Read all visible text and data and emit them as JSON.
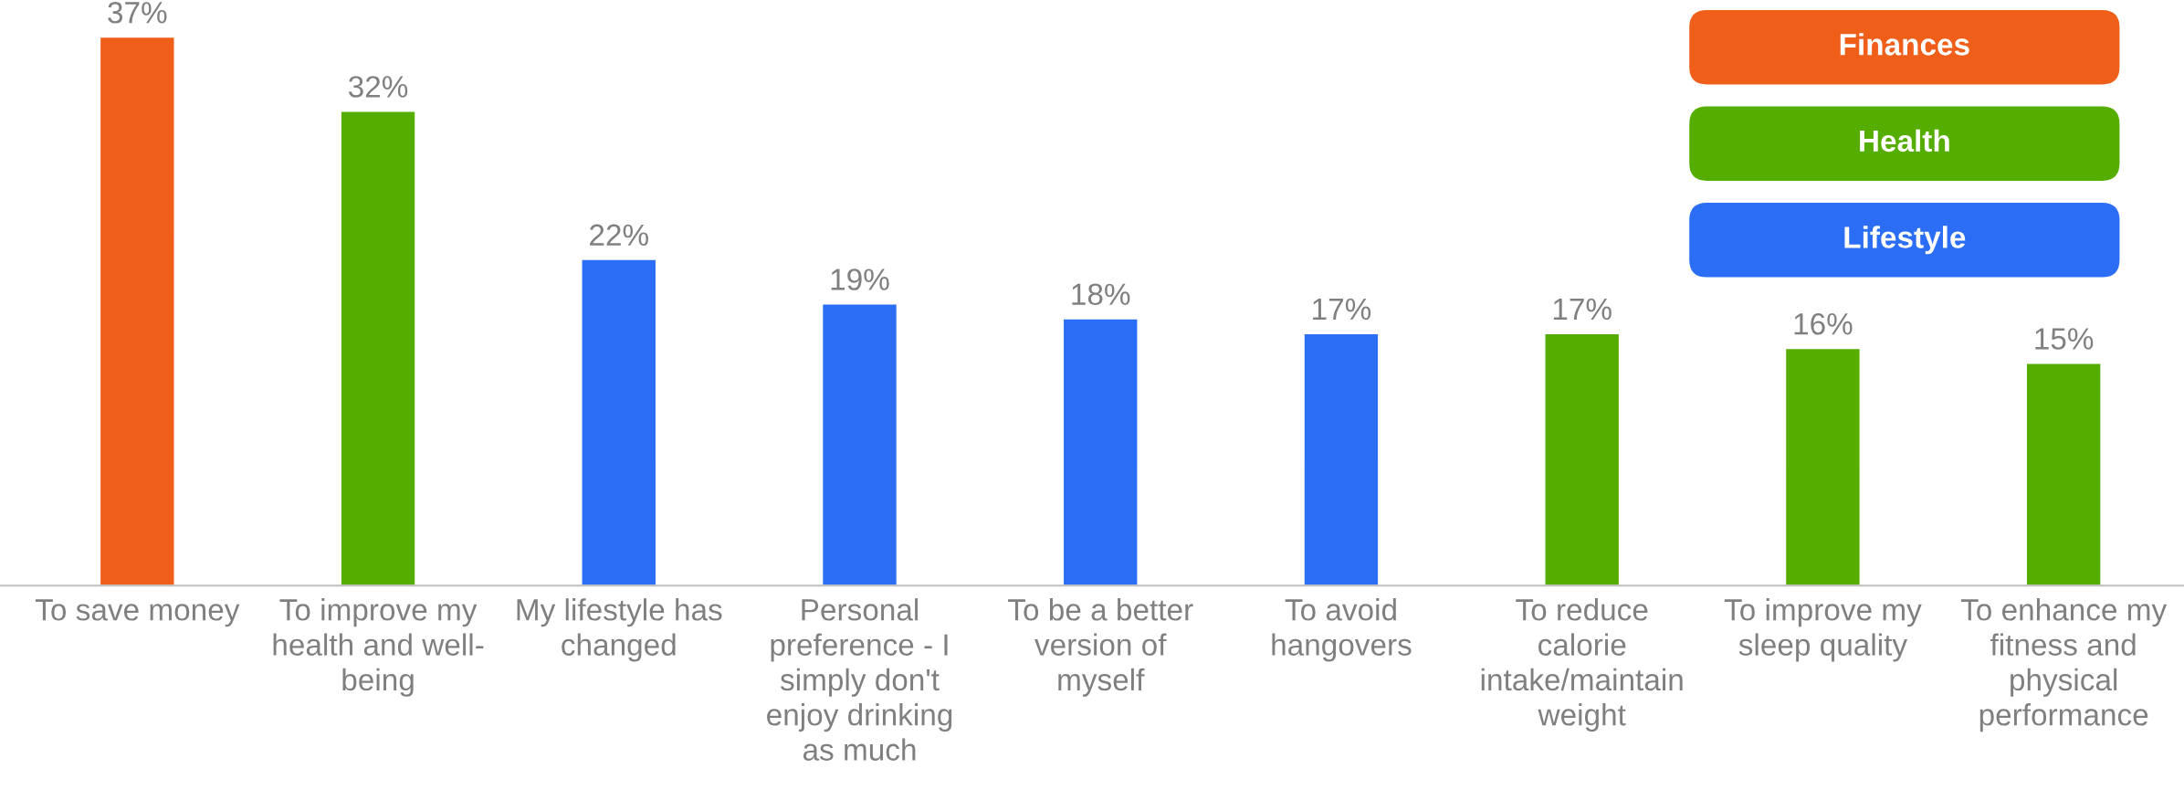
{
  "chart_data": {
    "type": "bar",
    "categories": [
      "To save money",
      "To improve my\nhealth and well-\nbeing",
      "My lifestyle has\nchanged",
      "Personal\npreference - I\nsimply don't\nenjoy drinking\nas much",
      "To be a better\nversion of\nmyself",
      "To avoid\nhangovers",
      "To reduce\ncalorie\nintake/maintain\nweight",
      "To improve my\nsleep quality",
      "To enhance my\nfitness and\nphysical\nperformance"
    ],
    "series": [
      {
        "name": "Finances",
        "color": "#f05f1a",
        "values": [
          37,
          null,
          null,
          null,
          null,
          null,
          null,
          null,
          null
        ],
        "value_labels": [
          "37%",
          null,
          null,
          null,
          null,
          null,
          null,
          null,
          null
        ]
      },
      {
        "name": "Health",
        "color": "#55ad00",
        "values": [
          null,
          32,
          null,
          null,
          null,
          null,
          17,
          16,
          15
        ],
        "value_labels": [
          null,
          "32%",
          null,
          null,
          null,
          null,
          "17%",
          "16%",
          "15%"
        ]
      },
      {
        "name": "Lifestyle",
        "color": "#2b6ef5",
        "values": [
          null,
          null,
          22,
          19,
          18,
          17,
          null,
          null,
          null
        ],
        "value_labels": [
          null,
          null,
          "22%",
          "19%",
          "18%",
          "17%",
          null,
          null,
          null
        ]
      }
    ],
    "tick_labels": "x",
    "legend": "top right"
  }
}
